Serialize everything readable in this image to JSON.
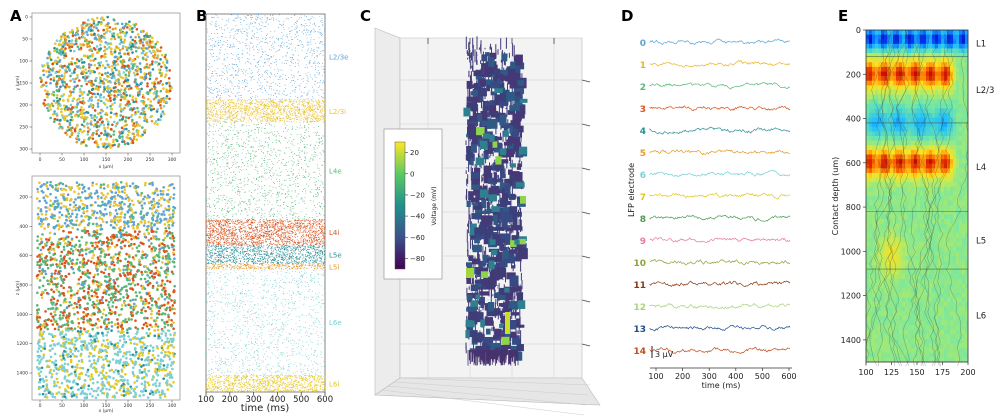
{
  "panels": {
    "a": "A",
    "b": "B",
    "c": "C",
    "d": "D",
    "e": "E"
  },
  "colors": {
    "L2/3e": "#5ba4d4",
    "L2/3i": "#e8c43a",
    "L4e": "#58b87a",
    "L4i": "#d9541e",
    "L5e": "#2a8f96",
    "L5i": "#e39a2b",
    "L6e": "#7ccfd4",
    "L6i": "#e6c81e"
  },
  "chart_data": [
    {
      "id": "A-top",
      "type": "scatter",
      "title": "",
      "xlabel": "x (µm)",
      "ylabel": "y (µm)",
      "xlim": [
        0,
        300
      ],
      "ylim": [
        0,
        300
      ],
      "xticks": [
        "0",
        "50",
        "100",
        "150",
        "200",
        "250",
        "300"
      ],
      "yticks": [
        "0",
        "50",
        "100",
        "150",
        "200",
        "250",
        "300"
      ],
      "description": "top view, circular column of neurons colored by population"
    },
    {
      "id": "A-bottom",
      "type": "scatter",
      "xlabel": "x (µm)",
      "ylabel": "z (µm)",
      "xlim": [
        0,
        300
      ],
      "ylim": [
        1500,
        100
      ],
      "xticks": [
        "0",
        "50",
        "100",
        "150",
        "200",
        "250",
        "300"
      ],
      "yticks": [
        "200",
        "400",
        "600",
        "800",
        "1000",
        "1200",
        "1400"
      ]
    },
    {
      "id": "B",
      "type": "scatter",
      "title": "raster",
      "xlabel": "time (ms)",
      "xlim": [
        100,
        600
      ],
      "xticks": [
        "100",
        "200",
        "300",
        "400",
        "500",
        "600"
      ],
      "series": [
        {
          "name": "L2/3e",
          "y_range": [
            0,
            0.226
          ]
        },
        {
          "name": "L2/3i",
          "y_range": [
            0.226,
            0.286
          ]
        },
        {
          "name": "L4e",
          "y_range": [
            0.286,
            0.543
          ]
        },
        {
          "name": "L4i",
          "y_range": [
            0.543,
            0.611
          ]
        },
        {
          "name": "L5e",
          "y_range": [
            0.611,
            0.661
          ]
        },
        {
          "name": "L5i",
          "y_range": [
            0.661,
            0.675
          ]
        },
        {
          "name": "L6e",
          "y_range": [
            0.675,
            0.955
          ]
        },
        {
          "name": "L6i",
          "y_range": [
            0.955,
            1.0
          ]
        }
      ],
      "labels": [
        "L2/3e",
        "L2/3i",
        "L4e",
        "L4i",
        "L5e",
        "L5i",
        "L6e",
        "L6i"
      ]
    },
    {
      "id": "C",
      "type": "other",
      "title": "3D morphology colored by voltage",
      "colorbar": {
        "label": "Voltage (mV)",
        "ticks": [
          "20",
          "0",
          "−20",
          "−40",
          "−60",
          "−80"
        ],
        "range": [
          -90,
          30
        ]
      }
    },
    {
      "id": "D",
      "type": "line",
      "xlabel": "time (ms)",
      "ylabel": "LFP electrode",
      "xticks": [
        "100",
        "200",
        "300",
        "400",
        "500",
        "600"
      ],
      "xlim": [
        100,
        600
      ],
      "channels": [
        "0",
        "1",
        "2",
        "3",
        "4",
        "5",
        "6",
        "7",
        "8",
        "9",
        "10",
        "11",
        "12",
        "13",
        "14"
      ],
      "channel_colors": [
        "#5ba4d4",
        "#e8b52a",
        "#58b87a",
        "#d9541e",
        "#2a8f96",
        "#e39a2b",
        "#7ccfd4",
        "#e6c81e",
        "#4c9a52",
        "#e879a6",
        "#8aa43a",
        "#8b3a0f",
        "#a6d47a",
        "#1f4e8c",
        "#c44d1e"
      ],
      "scale_label": "3 μV"
    },
    {
      "id": "E",
      "type": "heatmap",
      "xlabel": "",
      "ylabel": "Contact depth (um)",
      "xticks": [
        "100",
        "125",
        "150",
        "175",
        "200"
      ],
      "yticks": [
        "0",
        "200",
        "400",
        "600",
        "800",
        "1000",
        "1200",
        "1400"
      ],
      "xlim": [
        100,
        200
      ],
      "ylim": [
        0,
        1500
      ],
      "layers": [
        {
          "name": "L1",
          "depth": [
            0,
            120
          ]
        },
        {
          "name": "L2/3",
          "depth": [
            120,
            420
          ]
        },
        {
          "name": "L4",
          "depth": [
            420,
            820
          ]
        },
        {
          "name": "L5",
          "depth": [
            820,
            1080
          ]
        },
        {
          "name": "L6",
          "depth": [
            1080,
            1500
          ]
        }
      ]
    }
  ]
}
